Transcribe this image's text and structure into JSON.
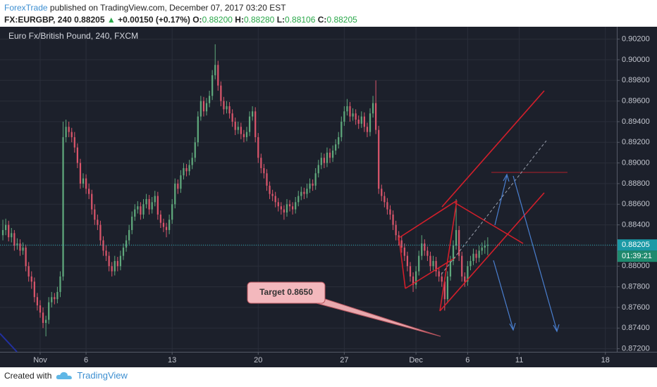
{
  "header": {
    "author": "ForexTrade",
    "published": "published on TradingView.com, December 07, 2017 03:20 EST",
    "symbol": "FX:EURGBP, 240",
    "price": "0.88205",
    "arrow": "▲",
    "change": "+0.00150 (+0.17%)",
    "ohlc": [
      {
        "label": "O:",
        "value": "0.88200"
      },
      {
        "label": "H:",
        "value": "0.88280"
      },
      {
        "label": "L:",
        "value": "0.88106"
      },
      {
        "label": "C:",
        "value": "0.88205"
      }
    ]
  },
  "chart_data": {
    "type": "candlestick",
    "legend": "Euro Fx/British Pound, 240, FXCM",
    "up_color": "#5fa87c",
    "down_color": "#d9556b",
    "xlim": [
      -1,
      214
    ],
    "ylim": [
      0.8717,
      0.9032
    ],
    "grid": true,
    "xticks": [
      {
        "value": 13,
        "label": "Nov"
      },
      {
        "value": 29,
        "label": "6"
      },
      {
        "value": 59,
        "label": "13"
      },
      {
        "value": 89,
        "label": "20"
      },
      {
        "value": 119,
        "label": "27"
      },
      {
        "value": 144,
        "label": "Dec"
      },
      {
        "value": 162,
        "label": "6"
      },
      {
        "value": 180,
        "label": "11"
      },
      {
        "value": 210,
        "label": "18"
      }
    ],
    "yticks": [
      {
        "value": 0.872,
        "label": "0.87200"
      },
      {
        "value": 0.874,
        "label": "0.87400"
      },
      {
        "value": 0.876,
        "label": "0.87600"
      },
      {
        "value": 0.878,
        "label": "0.87800"
      },
      {
        "value": 0.88,
        "label": "0.88000"
      },
      {
        "value": 0.882,
        "label": "0.88200"
      },
      {
        "value": 0.884,
        "label": "0.88400"
      },
      {
        "value": 0.886,
        "label": "0.88600"
      },
      {
        "value": 0.888,
        "label": "0.88800"
      },
      {
        "value": 0.89,
        "label": "0.89000"
      },
      {
        "value": 0.892,
        "label": "0.89200"
      },
      {
        "value": 0.894,
        "label": "0.89400"
      },
      {
        "value": 0.896,
        "label": "0.89600"
      },
      {
        "value": 0.898,
        "label": "0.89800"
      },
      {
        "value": 0.9,
        "label": "0.90000"
      },
      {
        "value": 0.902,
        "label": "0.90200"
      }
    ],
    "last_price": {
      "value": 0.88205,
      "label": "0.88205"
    },
    "countdown": "01:39:21",
    "annotation": "Target 0.8650",
    "ohlc": [
      [
        0.883,
        0.8845,
        0.8825,
        0.8835
      ],
      [
        0.8835,
        0.8846,
        0.883,
        0.884
      ],
      [
        0.884,
        0.8844,
        0.8824,
        0.8828
      ],
      [
        0.8828,
        0.8837,
        0.8823,
        0.8832
      ],
      [
        0.8832,
        0.8835,
        0.8815,
        0.882
      ],
      [
        0.882,
        0.8827,
        0.8816,
        0.8822
      ],
      [
        0.8822,
        0.8826,
        0.881,
        0.8815
      ],
      [
        0.8815,
        0.8823,
        0.8811,
        0.8818
      ],
      [
        0.8818,
        0.8821,
        0.8795,
        0.88
      ],
      [
        0.88,
        0.8804,
        0.8785,
        0.879
      ],
      [
        0.879,
        0.8795,
        0.8778,
        0.8785
      ],
      [
        0.8785,
        0.8789,
        0.8765,
        0.877
      ],
      [
        0.877,
        0.8774,
        0.8757,
        0.8762
      ],
      [
        0.8762,
        0.8767,
        0.875,
        0.8755
      ],
      [
        0.8755,
        0.876,
        0.874,
        0.8745
      ],
      [
        0.8745,
        0.8752,
        0.8732,
        0.8748
      ],
      [
        0.8748,
        0.877,
        0.8744,
        0.8765
      ],
      [
        0.8765,
        0.8775,
        0.876,
        0.877
      ],
      [
        0.877,
        0.8774,
        0.8763,
        0.8768
      ],
      [
        0.8768,
        0.878,
        0.8764,
        0.8775
      ],
      [
        0.8775,
        0.8795,
        0.877,
        0.879
      ],
      [
        0.879,
        0.894,
        0.8786,
        0.8925
      ],
      [
        0.8925,
        0.8942,
        0.892,
        0.8935
      ],
      [
        0.8935,
        0.894,
        0.8925,
        0.893
      ],
      [
        0.893,
        0.8934,
        0.892,
        0.8925
      ],
      [
        0.8925,
        0.893,
        0.891,
        0.8915
      ],
      [
        0.8915,
        0.8919,
        0.8895,
        0.89
      ],
      [
        0.89,
        0.8904,
        0.8875,
        0.888
      ],
      [
        0.888,
        0.889,
        0.8876,
        0.8885
      ],
      [
        0.8885,
        0.8889,
        0.887,
        0.8875
      ],
      [
        0.8875,
        0.888,
        0.8865,
        0.887
      ],
      [
        0.887,
        0.8874,
        0.885,
        0.8855
      ],
      [
        0.8855,
        0.886,
        0.884,
        0.8845
      ],
      [
        0.8845,
        0.885,
        0.8835,
        0.884
      ],
      [
        0.884,
        0.8844,
        0.882,
        0.8825
      ],
      [
        0.8825,
        0.8829,
        0.881,
        0.8815
      ],
      [
        0.8815,
        0.882,
        0.8805,
        0.881
      ],
      [
        0.881,
        0.8814,
        0.8795,
        0.88
      ],
      [
        0.88,
        0.8804,
        0.879,
        0.8795
      ],
      [
        0.8795,
        0.881,
        0.8791,
        0.8805
      ],
      [
        0.8805,
        0.8809,
        0.8795,
        0.88
      ],
      [
        0.88,
        0.8815,
        0.8796,
        0.881
      ],
      [
        0.881,
        0.8822,
        0.8806,
        0.8818
      ],
      [
        0.8818,
        0.883,
        0.8814,
        0.8825
      ],
      [
        0.8825,
        0.884,
        0.8821,
        0.8835
      ],
      [
        0.8835,
        0.8853,
        0.8831,
        0.8848
      ],
      [
        0.8848,
        0.886,
        0.8844,
        0.8855
      ],
      [
        0.8855,
        0.8863,
        0.8851,
        0.8858
      ],
      [
        0.8858,
        0.8862,
        0.8845,
        0.885
      ],
      [
        0.885,
        0.8865,
        0.8846,
        0.886
      ],
      [
        0.886,
        0.887,
        0.8856,
        0.8865
      ],
      [
        0.8865,
        0.8869,
        0.885,
        0.8855
      ],
      [
        0.8855,
        0.8867,
        0.8851,
        0.8862
      ],
      [
        0.8862,
        0.8873,
        0.8858,
        0.8868
      ],
      [
        0.8868,
        0.8872,
        0.8845,
        0.885
      ],
      [
        0.885,
        0.8854,
        0.8837,
        0.8842
      ],
      [
        0.8842,
        0.8846,
        0.8833,
        0.8838
      ],
      [
        0.8838,
        0.8842,
        0.8828,
        0.8835
      ],
      [
        0.8835,
        0.885,
        0.8831,
        0.8845
      ],
      [
        0.8845,
        0.8865,
        0.8841,
        0.886
      ],
      [
        0.886,
        0.8885,
        0.8856,
        0.888
      ],
      [
        0.888,
        0.8884,
        0.887,
        0.8875
      ],
      [
        0.8875,
        0.8893,
        0.8871,
        0.8888
      ],
      [
        0.8888,
        0.89,
        0.8884,
        0.8895
      ],
      [
        0.8895,
        0.8899,
        0.8887,
        0.8892
      ],
      [
        0.8892,
        0.8903,
        0.8888,
        0.8898
      ],
      [
        0.8898,
        0.891,
        0.8894,
        0.8905
      ],
      [
        0.8905,
        0.8925,
        0.8901,
        0.892
      ],
      [
        0.892,
        0.895,
        0.8916,
        0.8945
      ],
      [
        0.8945,
        0.8965,
        0.8941,
        0.896
      ],
      [
        0.896,
        0.8964,
        0.8945,
        0.895
      ],
      [
        0.895,
        0.8963,
        0.8946,
        0.8958
      ],
      [
        0.8958,
        0.897,
        0.8954,
        0.8965
      ],
      [
        0.8965,
        0.899,
        0.8961,
        0.8985
      ],
      [
        0.8985,
        0.9015,
        0.8981,
        0.8995
      ],
      [
        0.8995,
        0.8999,
        0.897,
        0.8975
      ],
      [
        0.8975,
        0.8979,
        0.8955,
        0.896
      ],
      [
        0.896,
        0.8964,
        0.8947,
        0.8952
      ],
      [
        0.8952,
        0.896,
        0.8948,
        0.8955
      ],
      [
        0.8955,
        0.8959,
        0.8943,
        0.8948
      ],
      [
        0.8948,
        0.8952,
        0.8935,
        0.894
      ],
      [
        0.894,
        0.8944,
        0.8927,
        0.8932
      ],
      [
        0.8932,
        0.894,
        0.8928,
        0.8935
      ],
      [
        0.8935,
        0.8939,
        0.8923,
        0.8928
      ],
      [
        0.8928,
        0.8932,
        0.892,
        0.8925
      ],
      [
        0.8925,
        0.8935,
        0.8921,
        0.893
      ],
      [
        0.893,
        0.895,
        0.8926,
        0.8945
      ],
      [
        0.8945,
        0.8955,
        0.8941,
        0.895
      ],
      [
        0.895,
        0.8954,
        0.892,
        0.8925
      ],
      [
        0.8925,
        0.8929,
        0.89,
        0.8905
      ],
      [
        0.8905,
        0.8909,
        0.889,
        0.8895
      ],
      [
        0.8895,
        0.8899,
        0.8885,
        0.889
      ],
      [
        0.889,
        0.8894,
        0.8873,
        0.8878
      ],
      [
        0.8878,
        0.8882,
        0.8865,
        0.887
      ],
      [
        0.887,
        0.8874,
        0.8863,
        0.8868
      ],
      [
        0.8868,
        0.8872,
        0.8857,
        0.8862
      ],
      [
        0.8862,
        0.8866,
        0.8853,
        0.8858
      ],
      [
        0.8858,
        0.8862,
        0.885,
        0.8855
      ],
      [
        0.8855,
        0.8859,
        0.8845,
        0.8852
      ],
      [
        0.8852,
        0.8865,
        0.8848,
        0.886
      ],
      [
        0.886,
        0.8864,
        0.8853,
        0.8858
      ],
      [
        0.8858,
        0.8862,
        0.885,
        0.8855
      ],
      [
        0.8855,
        0.8867,
        0.8851,
        0.8862
      ],
      [
        0.8862,
        0.8873,
        0.8858,
        0.8868
      ],
      [
        0.8868,
        0.8877,
        0.8864,
        0.8872
      ],
      [
        0.8872,
        0.8876,
        0.8865,
        0.887
      ],
      [
        0.887,
        0.888,
        0.8866,
        0.8875
      ],
      [
        0.8875,
        0.8885,
        0.8871,
        0.888
      ],
      [
        0.888,
        0.8884,
        0.8873,
        0.8878
      ],
      [
        0.8878,
        0.8895,
        0.8874,
        0.889
      ],
      [
        0.889,
        0.8903,
        0.8886,
        0.8898
      ],
      [
        0.8898,
        0.891,
        0.8894,
        0.8905
      ],
      [
        0.8905,
        0.8909,
        0.8895,
        0.89
      ],
      [
        0.89,
        0.8915,
        0.8896,
        0.891
      ],
      [
        0.891,
        0.8914,
        0.89,
        0.8905
      ],
      [
        0.8905,
        0.8917,
        0.8901,
        0.8912
      ],
      [
        0.8912,
        0.8923,
        0.8908,
        0.8918
      ],
      [
        0.8918,
        0.893,
        0.8914,
        0.8925
      ],
      [
        0.8925,
        0.8945,
        0.8921,
        0.894
      ],
      [
        0.894,
        0.8955,
        0.8936,
        0.895
      ],
      [
        0.895,
        0.8962,
        0.8946,
        0.8955
      ],
      [
        0.8955,
        0.8959,
        0.894,
        0.8945
      ],
      [
        0.8945,
        0.8953,
        0.8941,
        0.8948
      ],
      [
        0.8948,
        0.8952,
        0.8937,
        0.8942
      ],
      [
        0.8942,
        0.8946,
        0.8933,
        0.8938
      ],
      [
        0.8938,
        0.895,
        0.8934,
        0.8945
      ],
      [
        0.8945,
        0.8949,
        0.893,
        0.8935
      ],
      [
        0.8935,
        0.8939,
        0.8925,
        0.893
      ],
      [
        0.893,
        0.8953,
        0.8926,
        0.8948
      ],
      [
        0.8948,
        0.8965,
        0.8944,
        0.8958
      ],
      [
        0.8958,
        0.898,
        0.8928,
        0.8932
      ],
      [
        0.8932,
        0.8936,
        0.887,
        0.8875
      ],
      [
        0.8875,
        0.8879,
        0.8863,
        0.8868
      ],
      [
        0.8868,
        0.8872,
        0.8857,
        0.8862
      ],
      [
        0.8862,
        0.8866,
        0.885,
        0.8855
      ],
      [
        0.8855,
        0.8859,
        0.8845,
        0.885
      ],
      [
        0.885,
        0.8854,
        0.8835,
        0.884
      ],
      [
        0.884,
        0.8844,
        0.8825,
        0.883
      ],
      [
        0.883,
        0.8834,
        0.882,
        0.8825
      ],
      [
        0.8825,
        0.8829,
        0.8813,
        0.8818
      ],
      [
        0.8818,
        0.8822,
        0.8805,
        0.881
      ],
      [
        0.881,
        0.8814,
        0.8795,
        0.88
      ],
      [
        0.88,
        0.8804,
        0.8785,
        0.879
      ],
      [
        0.879,
        0.8794,
        0.8775,
        0.8782
      ],
      [
        0.8782,
        0.88,
        0.8778,
        0.8795
      ],
      [
        0.8795,
        0.8815,
        0.8791,
        0.881
      ],
      [
        0.881,
        0.883,
        0.8806,
        0.8822
      ],
      [
        0.8822,
        0.8826,
        0.881,
        0.8815
      ],
      [
        0.8815,
        0.8819,
        0.8805,
        0.881
      ],
      [
        0.881,
        0.8814,
        0.8795,
        0.88
      ],
      [
        0.88,
        0.881,
        0.8796,
        0.8805
      ],
      [
        0.8805,
        0.8809,
        0.879,
        0.8795
      ],
      [
        0.8795,
        0.8799,
        0.8785,
        0.879
      ],
      [
        0.879,
        0.8794,
        0.878,
        0.8785
      ],
      [
        0.8785,
        0.8789,
        0.8757,
        0.8768
      ],
      [
        0.8768,
        0.8795,
        0.8764,
        0.879
      ],
      [
        0.879,
        0.881,
        0.8786,
        0.8805
      ],
      [
        0.8805,
        0.8825,
        0.8801,
        0.882
      ],
      [
        0.882,
        0.8865,
        0.8816,
        0.8835
      ],
      [
        0.8835,
        0.8839,
        0.8805,
        0.881
      ],
      [
        0.881,
        0.8814,
        0.8785,
        0.879
      ],
      [
        0.879,
        0.8794,
        0.878,
        0.8785
      ],
      [
        0.8785,
        0.8805,
        0.8781,
        0.88
      ],
      [
        0.88,
        0.881,
        0.8796,
        0.8805
      ],
      [
        0.8805,
        0.8817,
        0.8801,
        0.8812
      ],
      [
        0.8812,
        0.8816,
        0.8803,
        0.8808
      ],
      [
        0.8808,
        0.882,
        0.8804,
        0.8815
      ],
      [
        0.8815,
        0.8823,
        0.8811,
        0.8818
      ],
      [
        0.8818,
        0.8825,
        0.8812,
        0.882
      ],
      [
        0.882,
        0.8828,
        0.88106,
        0.88205
      ]
    ]
  },
  "footer": {
    "created": "Created with",
    "brand": "TradingView"
  }
}
